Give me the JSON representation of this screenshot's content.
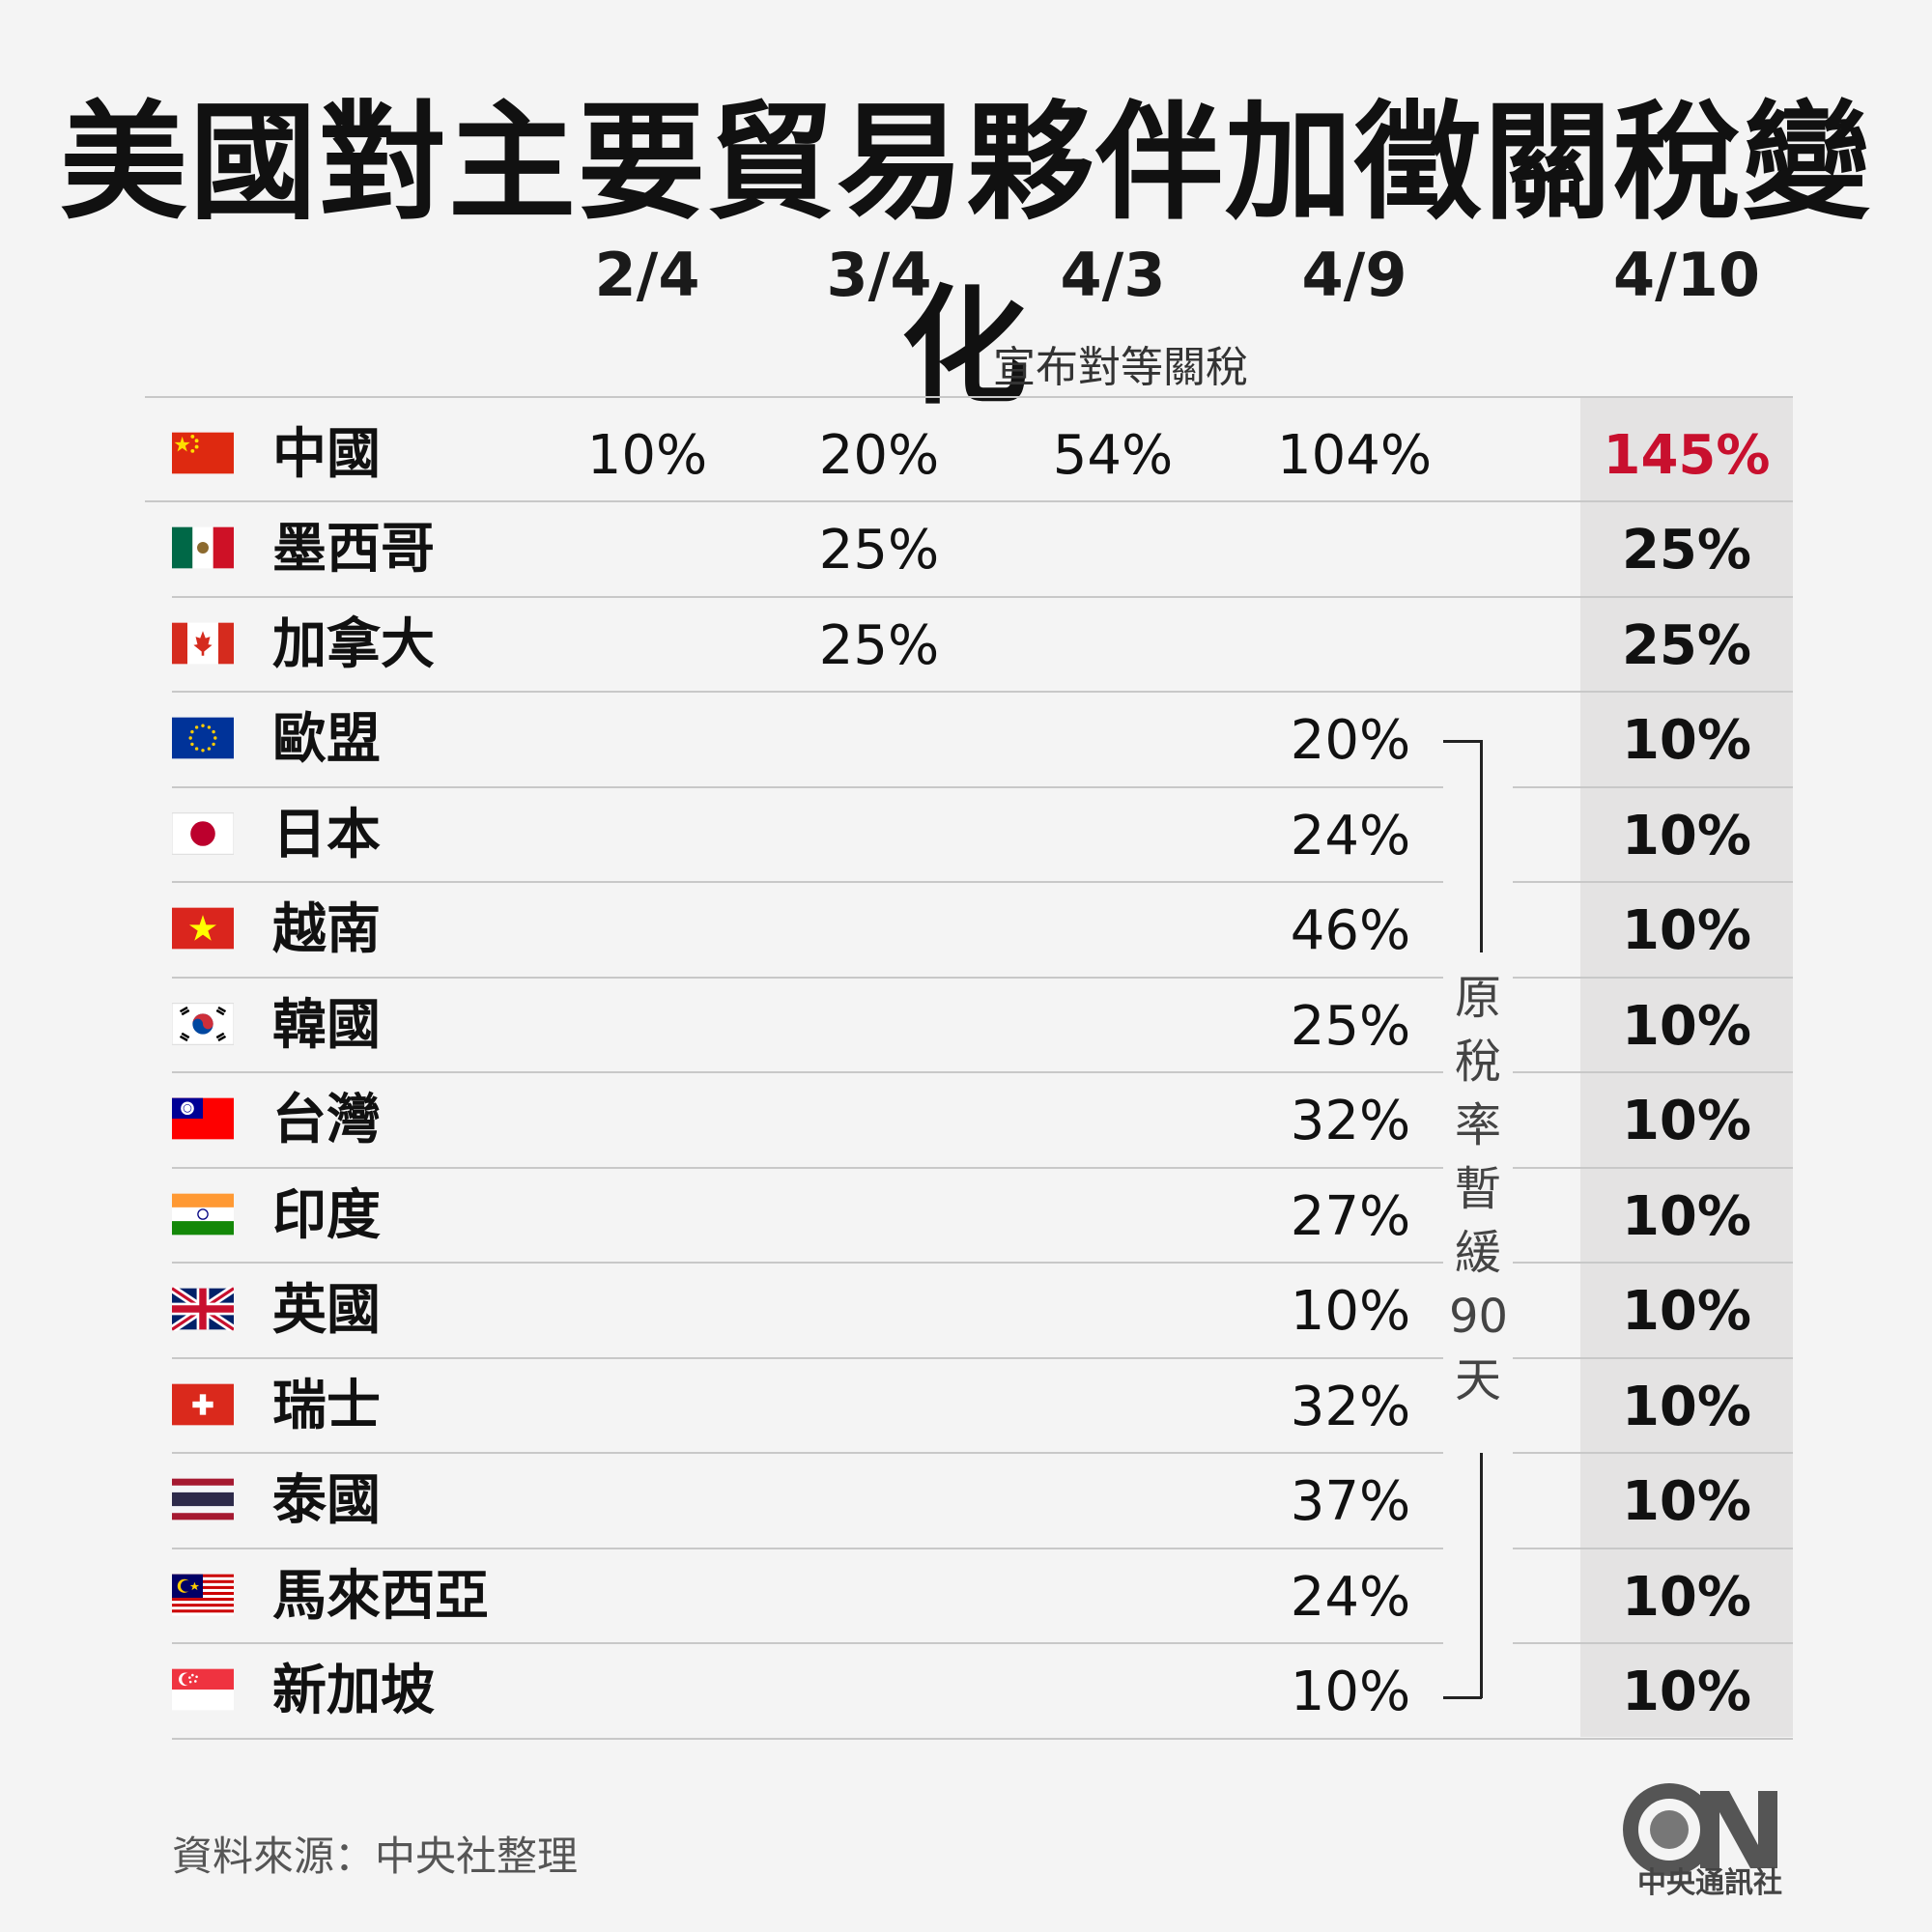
{
  "title": "美國對主要貿易夥伴加徵關稅變化",
  "columns": [
    "2/4",
    "3/4",
    "4/3",
    "4/9",
    "4/10"
  ],
  "column_note": "宣布對等關稅",
  "bracket_text": [
    "原",
    "稅",
    "率",
    "暫",
    "緩",
    "90",
    "天"
  ],
  "source": "資料來源：中央社整理",
  "logo_text": "中央通訊社",
  "colors": {
    "highlight": "#c8102e",
    "final_bg": "#e4e3e3"
  },
  "chart_data": {
    "type": "table",
    "title": "美國對主要貿易夥伴加徵關稅變化",
    "columns": [
      "2/4",
      "3/4",
      "4/3",
      "4/9",
      "4/10"
    ],
    "rows": [
      {
        "country": "中國",
        "flag": "china-flag-icon",
        "values": [
          "10%",
          "20%",
          "54%",
          "104%",
          "145%"
        ]
      },
      {
        "country": "墨西哥",
        "flag": "mexico-flag-icon",
        "values": [
          "",
          "25%",
          "",
          "",
          "25%"
        ]
      },
      {
        "country": "加拿大",
        "flag": "canada-flag-icon",
        "values": [
          "",
          "25%",
          "",
          "",
          "25%"
        ]
      },
      {
        "country": "歐盟",
        "flag": "eu-flag-icon",
        "values": [
          "",
          "",
          "",
          "20%",
          "10%"
        ]
      },
      {
        "country": "日本",
        "flag": "japan-flag-icon",
        "values": [
          "",
          "",
          "",
          "24%",
          "10%"
        ]
      },
      {
        "country": "越南",
        "flag": "vietnam-flag-icon",
        "values": [
          "",
          "",
          "",
          "46%",
          "10%"
        ]
      },
      {
        "country": "韓國",
        "flag": "korea-flag-icon",
        "values": [
          "",
          "",
          "",
          "25%",
          "10%"
        ]
      },
      {
        "country": "台灣",
        "flag": "taiwan-flag-icon",
        "values": [
          "",
          "",
          "",
          "32%",
          "10%"
        ]
      },
      {
        "country": "印度",
        "flag": "india-flag-icon",
        "values": [
          "",
          "",
          "",
          "27%",
          "10%"
        ]
      },
      {
        "country": "英國",
        "flag": "uk-flag-icon",
        "values": [
          "",
          "",
          "",
          "10%",
          "10%"
        ]
      },
      {
        "country": "瑞士",
        "flag": "switzerland-flag-icon",
        "values": [
          "",
          "",
          "",
          "32%",
          "10%"
        ]
      },
      {
        "country": "泰國",
        "flag": "thailand-flag-icon",
        "values": [
          "",
          "",
          "",
          "37%",
          "10%"
        ]
      },
      {
        "country": "馬來西亞",
        "flag": "malaysia-flag-icon",
        "values": [
          "",
          "",
          "",
          "24%",
          "10%"
        ]
      },
      {
        "country": "新加坡",
        "flag": "singapore-flag-icon",
        "values": [
          "",
          "",
          "",
          "10%",
          "10%"
        ]
      }
    ]
  }
}
